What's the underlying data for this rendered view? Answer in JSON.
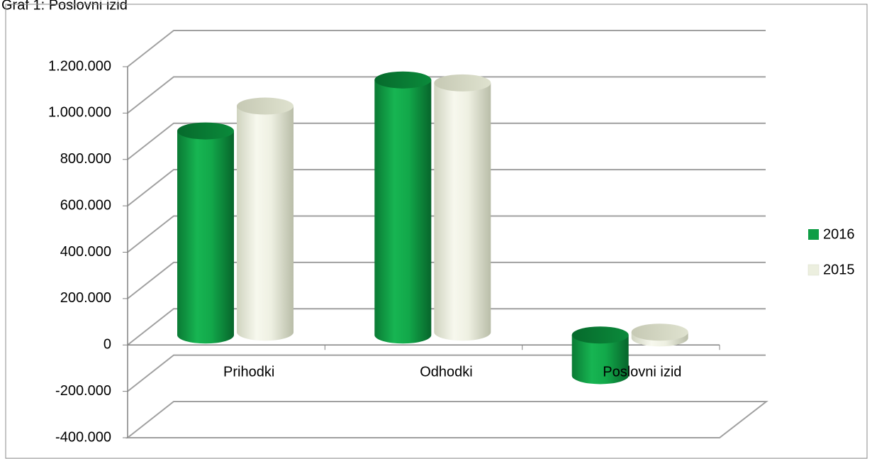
{
  "chart_data": {
    "type": "bar",
    "title": "Graf 1: Poslovni izid",
    "categories": [
      "Prihodki",
      "Odhodki",
      "Poslovni izid"
    ],
    "series": [
      {
        "name": "2016",
        "values": [
          880000,
          1100000,
          -175000
        ]
      },
      {
        "name": "2015",
        "values": [
          975000,
          1075000,
          -25000
        ]
      }
    ],
    "ylim": [
      -400000,
      1200000
    ],
    "yticks": [
      "1.200.000",
      "1.000.000",
      "800.000",
      "600.000",
      "400.000",
      "200.000",
      "0",
      "-200.000",
      "-400.000"
    ],
    "ytick_values": [
      1200000,
      1000000,
      800000,
      600000,
      400000,
      200000,
      0,
      -200000,
      -400000
    ],
    "grid": true,
    "legend": "right",
    "colors": {
      "2016": "#0f9d45",
      "2015": "#ecefdf"
    },
    "style": "3d-cylinder"
  }
}
